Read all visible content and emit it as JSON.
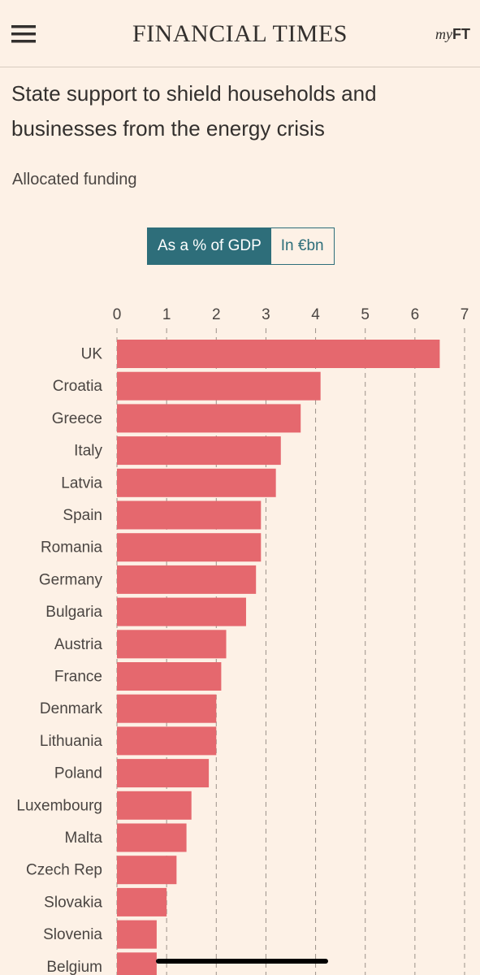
{
  "header": {
    "brand": "FINANCIAL TIMES",
    "account_prefix": "my",
    "account_suffix": "FT"
  },
  "chart_data": {
    "type": "bar",
    "orientation": "horizontal",
    "title": "State support to shield households and businesses from the energy crisis",
    "subtitle": "Allocated funding",
    "toggle": [
      "As a % of GDP",
      "In €bn"
    ],
    "categories": [
      "UK",
      "Croatia",
      "Greece",
      "Italy",
      "Latvia",
      "Spain",
      "Romania",
      "Germany",
      "Bulgaria",
      "Austria",
      "France",
      "Denmark",
      "Lithuania",
      "Poland",
      "Luxembourg",
      "Malta",
      "Czech Rep",
      "Slovakia",
      "Slovenia",
      "Belgium"
    ],
    "values": [
      6.5,
      4.1,
      3.7,
      3.3,
      3.2,
      2.9,
      2.9,
      2.8,
      2.6,
      2.2,
      2.1,
      2.0,
      2.0,
      1.85,
      1.5,
      1.4,
      1.2,
      1.0,
      0.8,
      0.8
    ],
    "color": "#e5686e",
    "xlim": [
      0,
      7
    ],
    "xticks": [
      0,
      1,
      2,
      3,
      4,
      5,
      6,
      7
    ],
    "grid": true
  }
}
